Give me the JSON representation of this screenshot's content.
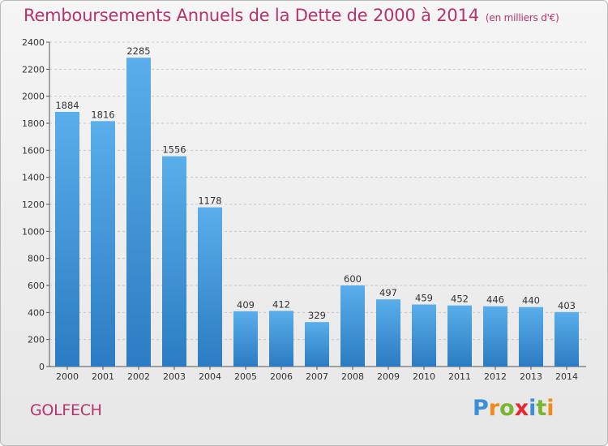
{
  "title": "Remboursements Annuels de la Dette de 2000 à 2014",
  "unit": "(en milliers d'€)",
  "city": "GOLFECH",
  "logo": {
    "text": "Proxiti",
    "letters": [
      "P",
      "r",
      "o",
      "x",
      "i",
      "t",
      "i"
    ],
    "colors": [
      "#3a8fd8",
      "#f08a1a",
      "#7ab530",
      "#e3282e",
      "#3a8fd8",
      "#7ab530",
      "#f08a1a"
    ]
  },
  "colors": {
    "accent": "#b5336d",
    "bar_top": "#5aaeea",
    "bar_bottom": "#2b7cc3",
    "grid": "#c8c8c8"
  },
  "chart_data": {
    "type": "bar",
    "title": "Remboursements Annuels de la Dette de 2000 à 2014",
    "categories": [
      "2000",
      "2001",
      "2002",
      "2003",
      "2004",
      "2005",
      "2006",
      "2007",
      "2008",
      "2009",
      "2010",
      "2011",
      "2012",
      "2013",
      "2014"
    ],
    "values": [
      1884,
      1816,
      2285,
      1556,
      1178,
      409,
      412,
      329,
      600,
      497,
      459,
      452,
      446,
      440,
      403
    ],
    "yticks": [
      0,
      200,
      400,
      600,
      800,
      1000,
      1200,
      1400,
      1600,
      1800,
      2000,
      2200,
      2400
    ],
    "ylim": [
      0,
      2400
    ],
    "grid": true,
    "xlabel": "",
    "ylabel": ""
  }
}
